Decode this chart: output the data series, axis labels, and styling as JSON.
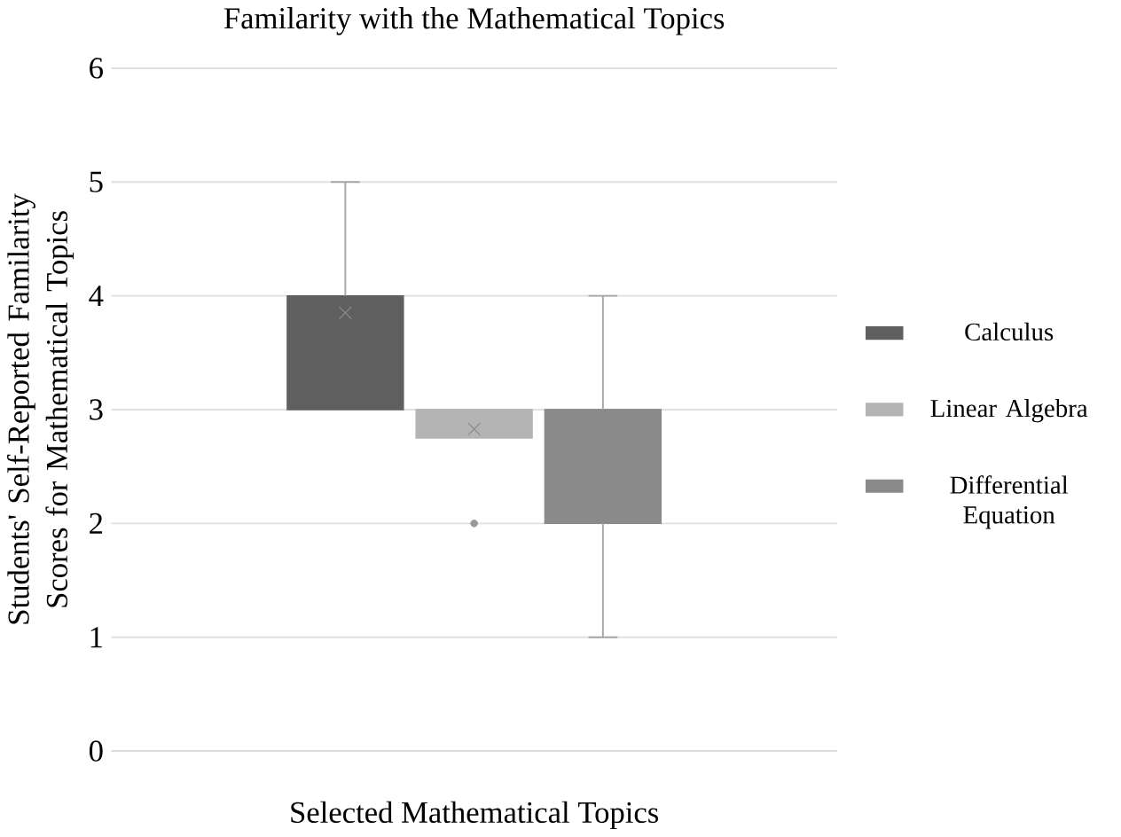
{
  "chart_data": {
    "type": "box",
    "title": "Familarity with the Mathematical Topics",
    "xlabel": "Selected Mathematical Topics",
    "ylabel": "Students' Self-Reported Familarity Scores for Mathematical Topics",
    "categories": [
      null
    ],
    "series": [
      {
        "name": "Calculus",
        "color": "#5f5f5f",
        "boxes": [
          {
            "low": 3,
            "q1": 3,
            "median": 4,
            "q3": 4,
            "high": 5,
            "mean": 3.85
          }
        ]
      },
      {
        "name": "Linear Algebra",
        "color": "#b4b4b4",
        "boxes": [
          {
            "low": 2.75,
            "q1": 2.75,
            "median": 3,
            "q3": 3,
            "high": 3,
            "mean": 2.83,
            "outliers": [
              2
            ]
          }
        ]
      },
      {
        "name": "Differential Equation",
        "color": "#8a8a8a",
        "boxes": [
          {
            "low": 1,
            "q1": 2,
            "median": 3,
            "q3": 3,
            "high": 4,
            "mean": 2.7
          }
        ]
      }
    ],
    "ylim": [
      0,
      6
    ],
    "yticks": [
      0,
      1,
      2,
      3,
      4,
      5,
      6
    ],
    "grid": "y",
    "legend": "right",
    "marker": "cross"
  }
}
